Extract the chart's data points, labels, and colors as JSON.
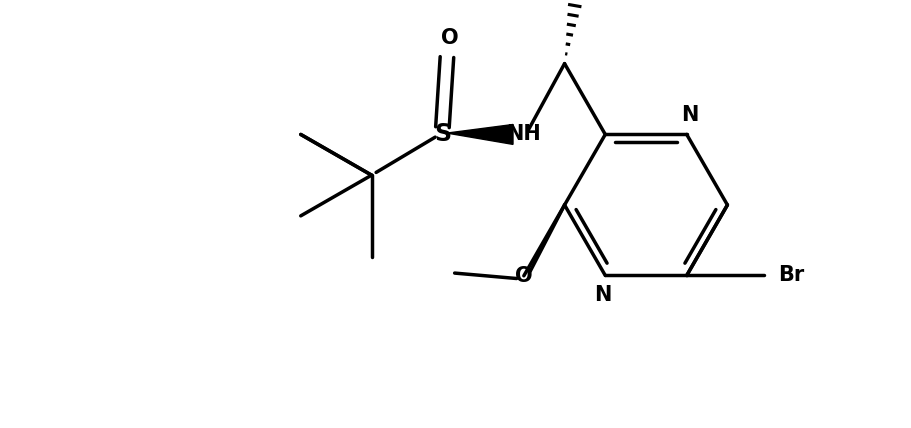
{
  "bg_color": "#ffffff",
  "line_color": "#000000",
  "line_width": 2.5,
  "font_size": 15,
  "fig_width": 9.12,
  "fig_height": 4.28,
  "dpi": 100,
  "xlim": [
    0,
    100
  ],
  "ylim": [
    0,
    47
  ]
}
